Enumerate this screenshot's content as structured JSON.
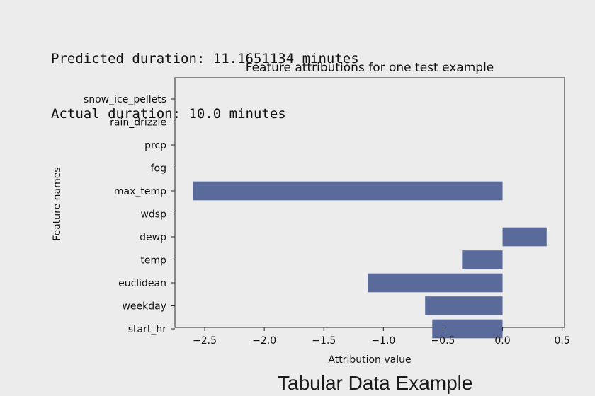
{
  "output": {
    "predicted": "Predicted duration: 11.1651134 minutes",
    "actual": "Actual duration: 10.0 minutes"
  },
  "caption": "Tabular Data Example",
  "colors": {
    "bar": "#5a6a9a",
    "axis": "#222222",
    "background": "#ececec"
  },
  "chart_data": {
    "type": "bar",
    "orientation": "horizontal",
    "title": "Feature attributions for one test example",
    "xlabel": "Attribution value",
    "ylabel": "Feature names",
    "categories": [
      "snow_ice_pellets",
      "rain_drizzle",
      "prcp",
      "fog",
      "max_temp",
      "wdsp",
      "dewp",
      "temp",
      "euclidean",
      "weekday",
      "start_hr"
    ],
    "values": [
      0,
      0,
      0,
      0,
      -2.6,
      0,
      0.37,
      -0.34,
      -1.13,
      -0.65,
      -0.59
    ],
    "xlim": [
      -2.75,
      0.52
    ],
    "xticks": [
      -2.5,
      -2.0,
      -1.5,
      -1.0,
      -0.5,
      0.0,
      0.5
    ],
    "xtick_labels": [
      "−2.5",
      "−2.0",
      "−1.5",
      "−1.0",
      "−0.5",
      "0.0",
      "0.5"
    ],
    "grid": false,
    "legend": "none"
  }
}
